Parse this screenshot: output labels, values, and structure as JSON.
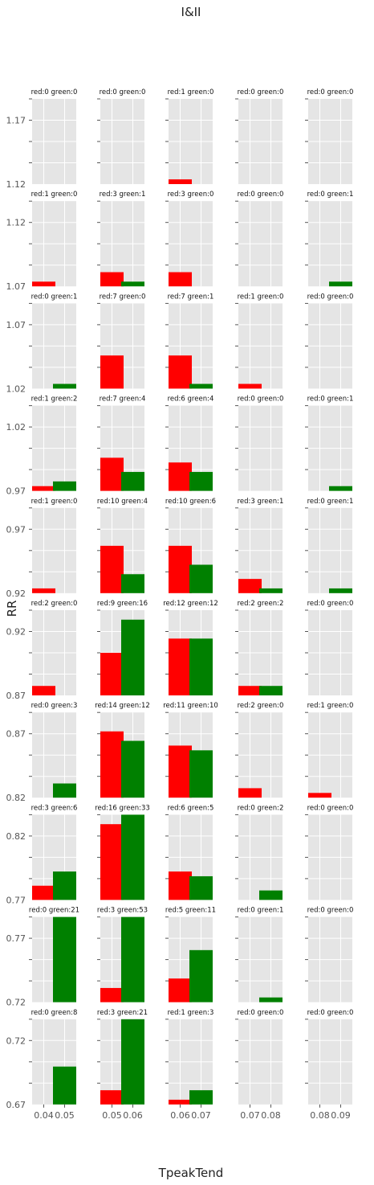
{
  "chart_data": {
    "type": "bar",
    "title": "I&II",
    "xlabel": "TpeakTend",
    "ylabel": "RR",
    "grid": true,
    "colors": {
      "red": "#ff0000",
      "green": "#008000",
      "panel_bg": "#e5e5e5",
      "grid": "#ffffff"
    },
    "rows": [
      {
        "ylim": [
          1.12,
          1.22
        ],
        "ytick_labels": [
          "1.12",
          "1.17"
        ]
      },
      {
        "ylim": [
          1.07,
          1.17
        ],
        "ytick_labels": [
          "1.07",
          "1.12"
        ]
      },
      {
        "ylim": [
          1.02,
          1.12
        ],
        "ytick_labels": [
          "1.02",
          "1.07"
        ]
      },
      {
        "ylim": [
          0.97,
          1.07
        ],
        "ytick_labels": [
          "0.97",
          "1.02"
        ]
      },
      {
        "ylim": [
          0.92,
          1.02
        ],
        "ytick_labels": [
          "0.92",
          "0.97"
        ]
      },
      {
        "ylim": [
          0.87,
          0.97
        ],
        "ytick_labels": [
          "0.87",
          "0.92"
        ]
      },
      {
        "ylim": [
          0.82,
          0.92
        ],
        "ytick_labels": [
          "0.82",
          "0.87"
        ]
      },
      {
        "ylim": [
          0.77,
          0.87
        ],
        "ytick_labels": [
          "0.77",
          "0.82"
        ]
      },
      {
        "ylim": [
          0.72,
          0.82
        ],
        "ytick_labels": [
          "0.72",
          "0.77"
        ]
      },
      {
        "ylim": [
          0.67,
          0.77
        ],
        "ytick_labels": [
          "0.67",
          "0.72"
        ]
      }
    ],
    "columns": [
      {
        "categories": [
          "0.04",
          "0.05"
        ]
      },
      {
        "categories": [
          "0.05",
          "0.06"
        ]
      },
      {
        "categories": [
          "0.06",
          "0.07"
        ]
      },
      {
        "categories": [
          "0.07",
          "0.08"
        ]
      },
      {
        "categories": [
          "0.08",
          "0.09"
        ]
      }
    ],
    "bar_ymax": 18,
    "panels": [
      [
        {
          "label": "red:0 green:0",
          "red": 0,
          "green": 0
        },
        {
          "label": "red:0 green:0",
          "red": 0,
          "green": 0
        },
        {
          "label": "red:1 green:0",
          "red": 1,
          "green": 0
        },
        {
          "label": "red:0 green:0",
          "red": 0,
          "green": 0
        },
        {
          "label": "red:0 green:0",
          "red": 0,
          "green": 0
        }
      ],
      [
        {
          "label": "red:1 green:0",
          "red": 1,
          "green": 0
        },
        {
          "label": "red:3 green:1",
          "red": 3,
          "green": 1
        },
        {
          "label": "red:3 green:0",
          "red": 3,
          "green": 0
        },
        {
          "label": "red:0 green:0",
          "red": 0,
          "green": 0
        },
        {
          "label": "red:0 green:1",
          "red": 0,
          "green": 1
        }
      ],
      [
        {
          "label": "red:0 green:1",
          "red": 0,
          "green": 1
        },
        {
          "label": "red:7 green:0",
          "red": 7,
          "green": 0
        },
        {
          "label": "red:7 green:1",
          "red": 7,
          "green": 1
        },
        {
          "label": "red:1 green:0",
          "red": 1,
          "green": 0
        },
        {
          "label": "red:0 green:0",
          "red": 0,
          "green": 0
        }
      ],
      [
        {
          "label": "red:1 green:2",
          "red": 1,
          "green": 2
        },
        {
          "label": "red:7 green:4",
          "red": 7,
          "green": 4
        },
        {
          "label": "red:6 green:4",
          "red": 6,
          "green": 4
        },
        {
          "label": "red:0 green:0",
          "red": 0,
          "green": 0
        },
        {
          "label": "red:0 green:1",
          "red": 0,
          "green": 1
        }
      ],
      [
        {
          "label": "red:1 green:0",
          "red": 1,
          "green": 0
        },
        {
          "label": "red:10 green:4",
          "red": 10,
          "green": 4
        },
        {
          "label": "red:10 green:6",
          "red": 10,
          "green": 6
        },
        {
          "label": "red:3 green:1",
          "red": 3,
          "green": 1
        },
        {
          "label": "red:0 green:1",
          "red": 0,
          "green": 1
        }
      ],
      [
        {
          "label": "red:2 green:0",
          "red": 2,
          "green": 0
        },
        {
          "label": "red:9 green:16",
          "red": 9,
          "green": 16
        },
        {
          "label": "red:12 green:12",
          "red": 12,
          "green": 12
        },
        {
          "label": "red:2 green:2",
          "red": 2,
          "green": 2
        },
        {
          "label": "red:0 green:0",
          "red": 0,
          "green": 0
        }
      ],
      [
        {
          "label": "red:0 green:3",
          "red": 0,
          "green": 3
        },
        {
          "label": "red:14 green:12",
          "red": 14,
          "green": 12
        },
        {
          "label": "red:11 green:10",
          "red": 11,
          "green": 10
        },
        {
          "label": "red:2 green:0",
          "red": 2,
          "green": 0
        },
        {
          "label": "red:1 green:0",
          "red": 1,
          "green": 0
        }
      ],
      [
        {
          "label": "red:3 green:6",
          "red": 3,
          "green": 6
        },
        {
          "label": "red:16 green:33",
          "red": 16,
          "green": 33
        },
        {
          "label": "red:6 green:5",
          "red": 6,
          "green": 5
        },
        {
          "label": "red:0 green:2",
          "red": 0,
          "green": 2
        },
        {
          "label": "red:0 green:0",
          "red": 0,
          "green": 0
        }
      ],
      [
        {
          "label": "red:0 green:21",
          "red": 0,
          "green": 21
        },
        {
          "label": "red:3 green:53",
          "red": 3,
          "green": 53
        },
        {
          "label": "red:5 green:11",
          "red": 5,
          "green": 11
        },
        {
          "label": "red:0 green:1",
          "red": 0,
          "green": 1
        },
        {
          "label": "red:0 green:0",
          "red": 0,
          "green": 0
        }
      ],
      [
        {
          "label": "red:0 green:8",
          "red": 0,
          "green": 8
        },
        {
          "label": "red:3 green:21",
          "red": 3,
          "green": 21
        },
        {
          "label": "red:1 green:3",
          "red": 1,
          "green": 3
        },
        {
          "label": "red:0 green:0",
          "red": 0,
          "green": 0
        },
        {
          "label": "red:0 green:0",
          "red": 0,
          "green": 0
        }
      ]
    ]
  }
}
